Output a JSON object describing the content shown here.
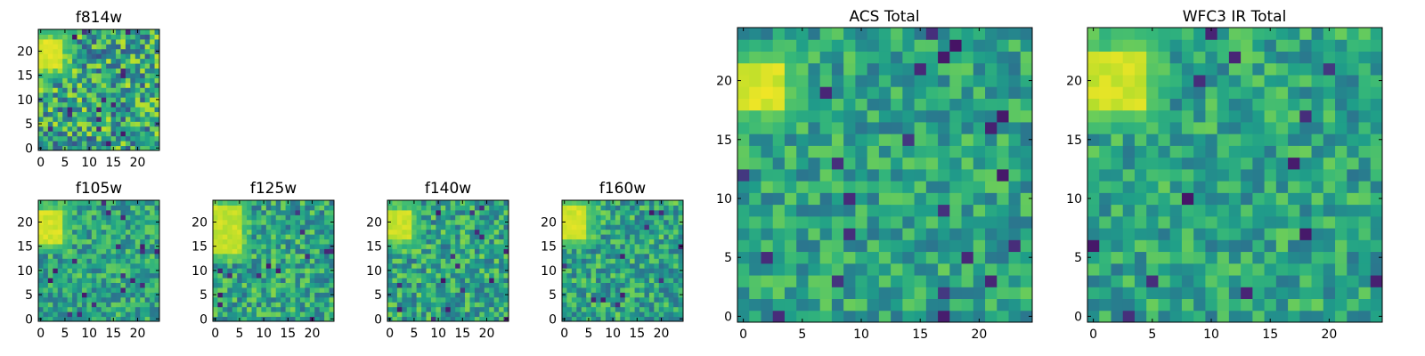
{
  "chart_data": [
    {
      "type": "heatmap",
      "title": "f814w",
      "colormap": "viridis",
      "xticks": [
        "0",
        "5",
        "10",
        "15",
        "20"
      ],
      "yticks": [
        "0",
        "5",
        "10",
        "15",
        "20"
      ],
      "xlim": [
        0,
        25
      ],
      "ylim": [
        0,
        25
      ],
      "grid_size": 25,
      "seed": 11,
      "noise": 0.55,
      "bright_region": {
        "x": [
          0,
          5
        ],
        "y": [
          17,
          23
        ],
        "level": 0.98
      }
    },
    {
      "type": "heatmap",
      "title": "f105w",
      "colormap": "viridis",
      "xticks": [
        "0",
        "5",
        "10",
        "15",
        "20"
      ],
      "yticks": [
        "0",
        "5",
        "10",
        "15",
        "20"
      ],
      "xlim": [
        0,
        25
      ],
      "ylim": [
        0,
        25
      ],
      "grid_size": 25,
      "seed": 23,
      "noise": 0.35,
      "bright_region": {
        "x": [
          0,
          5
        ],
        "y": [
          16,
          23
        ],
        "level": 0.97
      }
    },
    {
      "type": "heatmap",
      "title": "f125w",
      "colormap": "viridis",
      "xticks": [
        "0",
        "5",
        "10",
        "15",
        "20"
      ],
      "yticks": [
        "0",
        "5",
        "10",
        "15",
        "20"
      ],
      "xlim": [
        0,
        25
      ],
      "ylim": [
        0,
        25
      ],
      "grid_size": 25,
      "seed": 37,
      "noise": 0.4,
      "bright_region": {
        "x": [
          0,
          6
        ],
        "y": [
          14,
          24
        ],
        "level": 0.95
      }
    },
    {
      "type": "heatmap",
      "title": "f140w",
      "colormap": "viridis",
      "xticks": [
        "0",
        "5",
        "10",
        "15",
        "20"
      ],
      "yticks": [
        "0",
        "5",
        "10",
        "15",
        "20"
      ],
      "xlim": [
        0,
        25
      ],
      "ylim": [
        0,
        25
      ],
      "grid_size": 25,
      "seed": 41,
      "noise": 0.4,
      "bright_region": {
        "x": [
          0,
          5
        ],
        "y": [
          17,
          23
        ],
        "level": 0.96
      }
    },
    {
      "type": "heatmap",
      "title": "f160w",
      "colormap": "viridis",
      "xticks": [
        "0",
        "5",
        "10",
        "15",
        "20"
      ],
      "yticks": [
        "0",
        "5",
        "10",
        "15",
        "20"
      ],
      "xlim": [
        0,
        25
      ],
      "ylim": [
        0,
        25
      ],
      "grid_size": 25,
      "seed": 53,
      "noise": 0.38,
      "bright_region": {
        "x": [
          0,
          5
        ],
        "y": [
          17,
          24
        ],
        "level": 0.97
      }
    },
    {
      "type": "heatmap",
      "title": "ACS Total",
      "colormap": "viridis",
      "xticks": [
        "0",
        "5",
        "10",
        "15",
        "20"
      ],
      "yticks": [
        "0",
        "5",
        "10",
        "15",
        "20"
      ],
      "xlim": [
        0,
        25
      ],
      "ylim": [
        0,
        25
      ],
      "grid_size": 25,
      "seed": 67,
      "noise": 0.32,
      "bright_region": {
        "x": [
          0,
          4
        ],
        "y": [
          18,
          22
        ],
        "level": 0.98
      }
    },
    {
      "type": "heatmap",
      "title": "WFC3 IR Total",
      "colormap": "viridis",
      "xticks": [
        "0",
        "5",
        "10",
        "15",
        "20"
      ],
      "yticks": [
        "0",
        "5",
        "10",
        "15",
        "20"
      ],
      "xlim": [
        0,
        25
      ],
      "ylim": [
        0,
        25
      ],
      "grid_size": 25,
      "seed": 79,
      "noise": 0.32,
      "bright_region": {
        "x": [
          0,
          5
        ],
        "y": [
          18,
          23
        ],
        "level": 0.97
      }
    }
  ],
  "colormap": {
    "name": "viridis",
    "stops": [
      "#440154",
      "#482878",
      "#3e4989",
      "#31688e",
      "#26828e",
      "#1f9e89",
      "#35b779",
      "#6ece58",
      "#b5de2b",
      "#fde725"
    ]
  }
}
